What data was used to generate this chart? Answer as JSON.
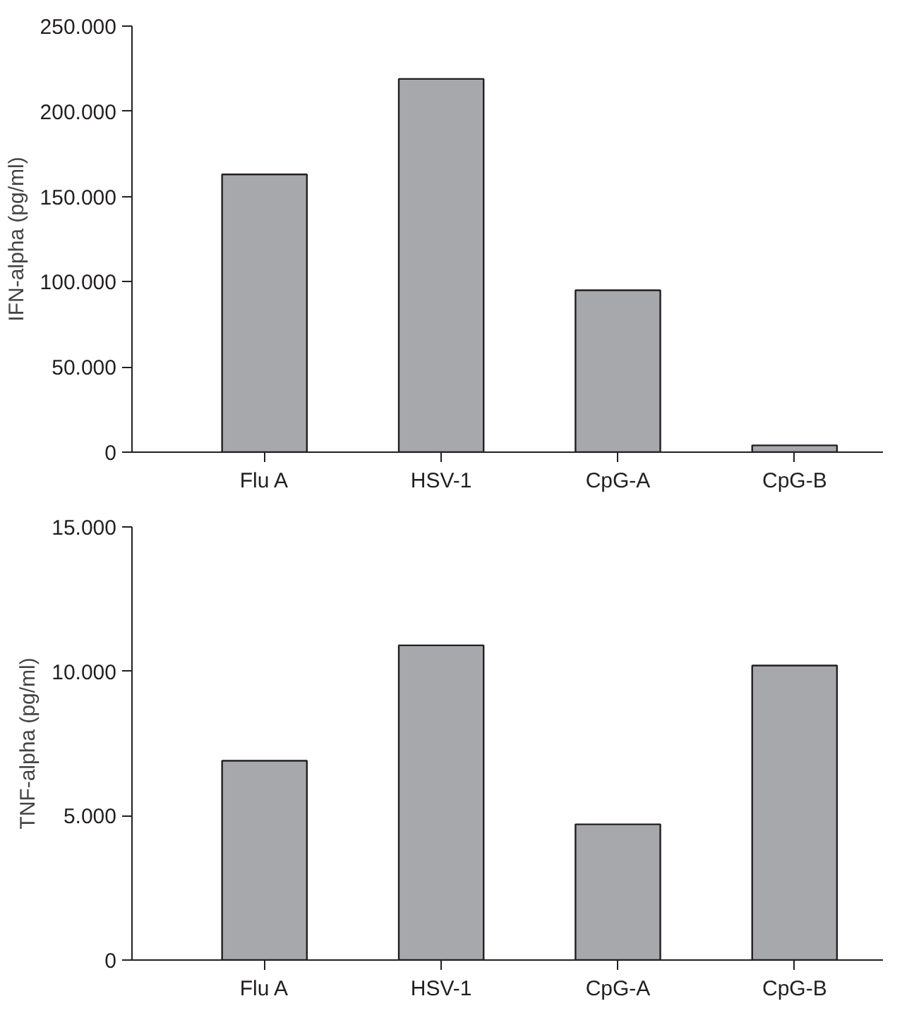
{
  "chart_data": [
    {
      "type": "bar",
      "ylabel": "IFN-alpha (pg/ml)",
      "categories": [
        "Flu A",
        "HSV-1",
        "CpG-A",
        "CpG-B"
      ],
      "values": [
        163000,
        219000,
        95000,
        4000
      ],
      "color": "#a7a8ab",
      "ylim": [
        0,
        250000
      ],
      "yticks": [
        {
          "value": 0,
          "label": "0"
        },
        {
          "value": 50000,
          "label": "50.000"
        },
        {
          "value": 100000,
          "label": "100.000"
        },
        {
          "value": 150000,
          "label": "150.000"
        },
        {
          "value": 200000,
          "label": "200.000"
        },
        {
          "value": 250000,
          "label": "250.000"
        }
      ],
      "grid": false
    },
    {
      "type": "bar",
      "ylabel": "TNF-alpha (pg/ml)",
      "categories": [
        "Flu A",
        "HSV-1",
        "CpG-A",
        "CpG-B"
      ],
      "values": [
        6900,
        10900,
        4700,
        10200
      ],
      "color": "#a7a8ab",
      "ylim": [
        0,
        15000
      ],
      "yticks": [
        {
          "value": 0,
          "label": "0"
        },
        {
          "value": 5000,
          "label": "5.000"
        },
        {
          "value": 10000,
          "label": "10.000"
        },
        {
          "value": 15000,
          "label": "15.000"
        }
      ],
      "grid": false
    }
  ]
}
